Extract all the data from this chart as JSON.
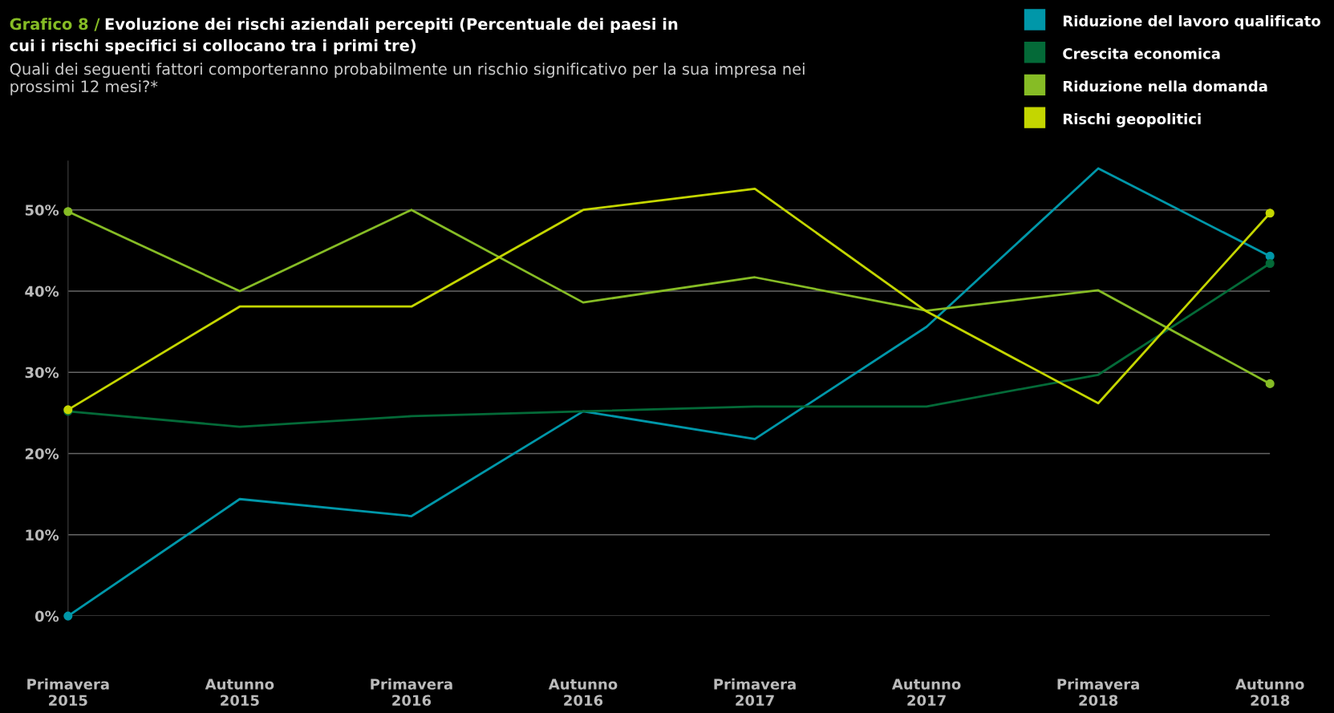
{
  "chart_data": {
    "type": "line",
    "title": "Grafico 8 / Evoluzione dei rischi aziendali percepiti (Percentuale dei paesi in cui i rischi specifici si collocano tra i primi tre)",
    "subtitle": "Quali dei seguenti fattori comporteranno probabilmente un rischio significativo per la sua impresa nei prossimi 12 mesi?*",
    "categories": [
      "Primavera\n2015",
      "Autunno\n2015",
      "Primavera\n2016",
      "Autunno\n2016",
      "Primavera\n2017",
      "Autunno\n2017",
      "Primavera\n2018",
      "Autunno\n2018"
    ],
    "series": [
      {
        "name": "Riduzione del lavoro qualificato",
        "color": "#0097a9",
        "values": [
          0,
          14.4,
          12.3,
          25.2,
          21.8,
          35.6,
          55.1,
          44.3
        ]
      },
      {
        "name": "Crescita economica",
        "color": "#046a38",
        "values": [
          25.2,
          23.3,
          24.6,
          25.2,
          25.8,
          25.8,
          29.7,
          43.4
        ]
      },
      {
        "name": "Riduzione nella domanda",
        "color": "#86bc25",
        "values": [
          49.8,
          40.0,
          50.0,
          38.6,
          41.7,
          37.6,
          40.1,
          28.6
        ]
      },
      {
        "name": "Rischi geopolitici",
        "color": "#c4d600",
        "values": [
          25.4,
          38.1,
          38.1,
          50.0,
          52.6,
          37.5,
          26.2,
          49.6
        ]
      }
    ],
    "ylim": [
      0,
      56
    ],
    "yticks": [
      {
        "value": 0,
        "label": "0%"
      },
      {
        "value": 10,
        "label": "10%"
      },
      {
        "value": 20,
        "label": "20%"
      },
      {
        "value": 30,
        "label": "30%"
      },
      {
        "value": 40,
        "label": "40%"
      },
      {
        "value": 50,
        "label": "50%"
      }
    ],
    "grid": "y",
    "legend": "top right",
    "line_style": "solid"
  }
}
